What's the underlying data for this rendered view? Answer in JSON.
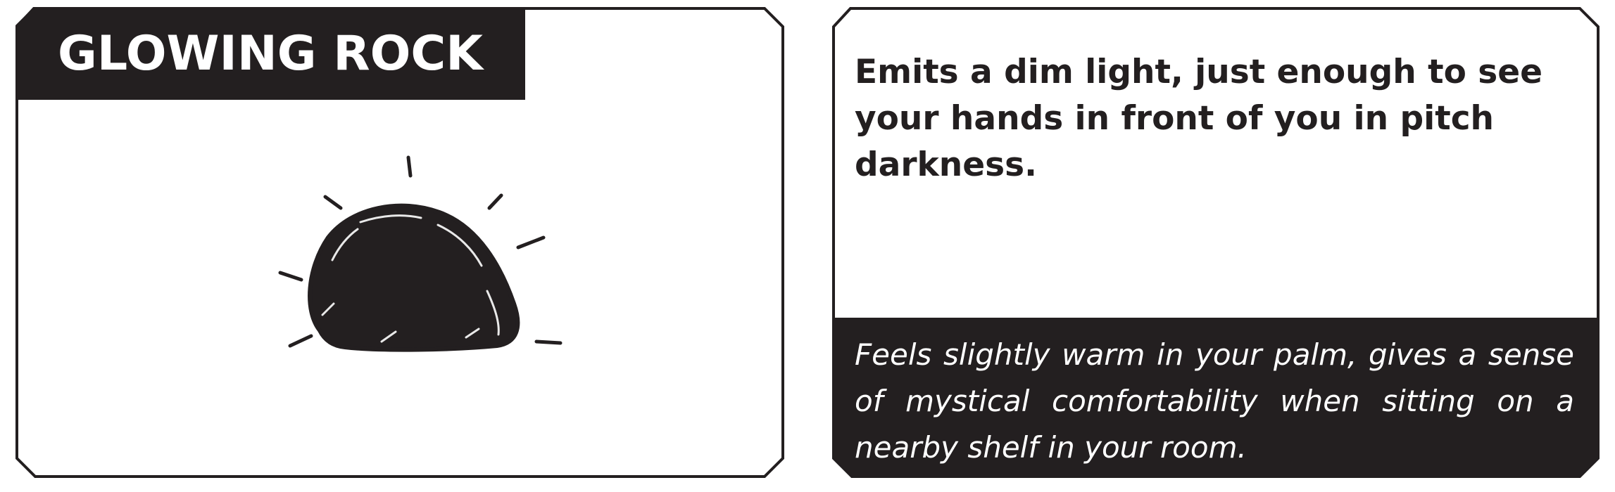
{
  "card": {
    "title": "GLOWING ROCK",
    "icon": "glowing-rock-icon",
    "description": "Emits a dim light, just enough to see your hands in front of you in pitch darkness.",
    "flavor_text": "Feels slightly warm in your palm, gives a sense of mystical comfortability when sitting on a nearby shelf in your room."
  },
  "colors": {
    "ink": "#231f20",
    "paper": "#ffffff"
  }
}
